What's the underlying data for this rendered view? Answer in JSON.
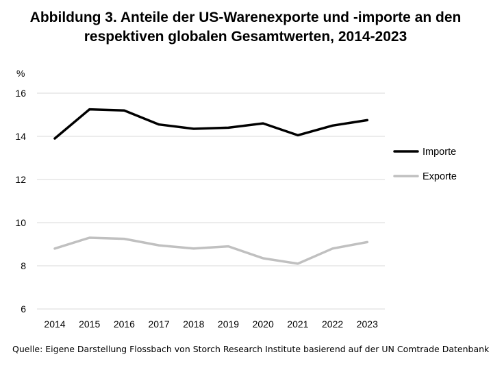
{
  "title_line1": "Abbildung 3. Anteile der US-Warenexporte und -importe an den",
  "title_line2": "respektiven globalen Gesamtwerten, 2014-2023",
  "source": "Quelle: Eigene Darstellung Flossbach von Storch Research Institute basierend auf der UN Comtrade Datenbank",
  "chart_data": {
    "type": "line",
    "ylabel": "%",
    "ylim": [
      6,
      16
    ],
    "yticks": [
      6,
      8,
      10,
      12,
      14,
      16
    ],
    "grid": true,
    "legend_position": "right",
    "x": [
      "2014",
      "2015",
      "2016",
      "2017",
      "2018",
      "2019",
      "2020",
      "2021",
      "2022",
      "2023"
    ],
    "series": [
      {
        "name": "Importe",
        "color": "#000000",
        "values": [
          13.9,
          15.25,
          15.2,
          14.55,
          14.35,
          14.4,
          14.6,
          14.05,
          14.5,
          14.75
        ]
      },
      {
        "name": "Exporte",
        "color": "#c0c0c0",
        "values": [
          8.8,
          9.3,
          9.25,
          8.95,
          8.8,
          8.9,
          8.35,
          8.1,
          8.8,
          9.1
        ]
      }
    ]
  }
}
